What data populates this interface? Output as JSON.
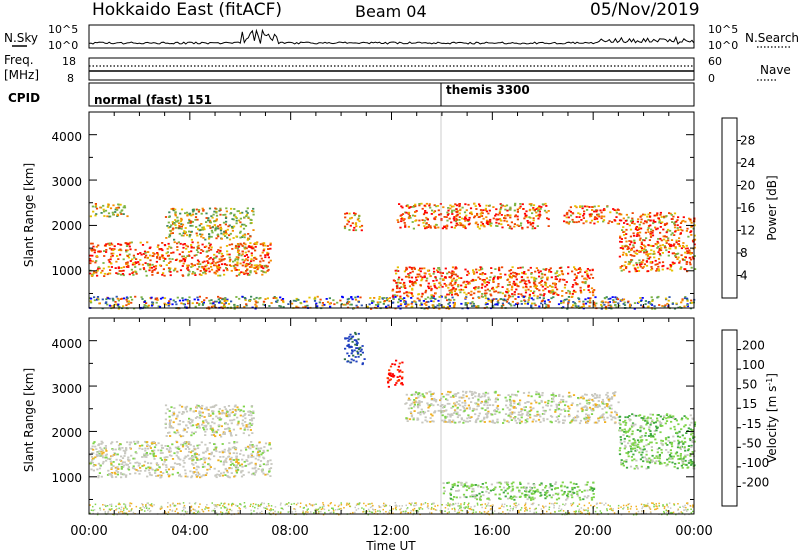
{
  "header": {
    "station": "Hokkaido East (fitACF)",
    "beam": "Beam 04",
    "date": "05/Nov/2019"
  },
  "noise_panel": {
    "left_label": "N.Sky",
    "right_label": "N.Search",
    "left_ticks": [
      "10^5",
      "10^0"
    ],
    "right_ticks": [
      "10^5",
      "10^0"
    ]
  },
  "freq_panel": {
    "left_label_1": "Freq.",
    "left_label_2": "[MHz]",
    "right_label": "Nave",
    "left_ticks": [
      "18",
      "8"
    ],
    "right_ticks": [
      "60",
      "0"
    ]
  },
  "cpid_panel": {
    "label": "CPID",
    "programs": [
      {
        "name": "normal (fast) 151",
        "start_hour": 0
      },
      {
        "name": "themis 3300",
        "start_hour": 14
      }
    ]
  },
  "x_axis": {
    "label": "Time UT",
    "ticks": [
      "00:00",
      "04:00",
      "08:00",
      "12:00",
      "16:00",
      "20:00",
      "00:00"
    ]
  },
  "power_panel": {
    "ylabel": "Slant Range [km]",
    "yticks": [
      "1000",
      "2000",
      "3000",
      "4000"
    ],
    "colorbar_label": "Power [dB]",
    "colorbar_ticks": [
      "4",
      "8",
      "12",
      "16",
      "20",
      "24",
      "28"
    ],
    "colors": [
      "#0000ff",
      "#2c55b0",
      "#3e8a5a",
      "#7cb342",
      "#e6c000",
      "#f58a00",
      "#ee4400",
      "#ff0000"
    ]
  },
  "velocity_panel": {
    "ylabel": "Slant Range [km]",
    "yticks": [
      "1000",
      "2000",
      "3000",
      "4000"
    ],
    "colorbar_label": "Velocity [m s",
    "colorbar_label_sup": "-1",
    "colorbar_label_end": "]",
    "colorbar_ticks": [
      "200",
      "100",
      "50",
      "15",
      "-15",
      "-50",
      "-100",
      "-200"
    ],
    "colors": [
      "#1f3fbf",
      "#2e6e46",
      "#3faa3f",
      "#7fd44a",
      "#c8c8c0",
      "#f0b020",
      "#f58a00",
      "#ff4000",
      "#ff0000"
    ]
  },
  "chart_data": {
    "type": "heatmap",
    "x_range_hours": [
      0,
      24
    ],
    "y_range_km": [
      180,
      4500
    ],
    "power_regions": [
      {
        "t": [
          0,
          7.2
        ],
        "r": [
          900,
          1650
        ],
        "level": "high"
      },
      {
        "t": [
          0,
          1.5
        ],
        "r": [
          2200,
          2500
        ],
        "level": "medium"
      },
      {
        "t": [
          3,
          6.5
        ],
        "r": [
          1700,
          2400
        ],
        "level": "medium"
      },
      {
        "t": [
          10.1,
          10.8
        ],
        "r": [
          1900,
          2300
        ],
        "level": "high"
      },
      {
        "t": [
          12.2,
          18.2
        ],
        "r": [
          1950,
          2500
        ],
        "level": "high"
      },
      {
        "t": [
          18.8,
          21
        ],
        "r": [
          2050,
          2450
        ],
        "level": "high"
      },
      {
        "t": [
          21,
          24
        ],
        "r": [
          1000,
          2300
        ],
        "level": "high"
      },
      {
        "t": [
          12,
          20
        ],
        "r": [
          450,
          1100
        ],
        "level": "high"
      },
      {
        "t": [
          0,
          24
        ],
        "r": [
          180,
          450
        ],
        "level": "low"
      }
    ],
    "velocity_regions": [
      {
        "t": [
          0,
          7.2
        ],
        "r": [
          1000,
          1800
        ],
        "range": "-15 to 15"
      },
      {
        "t": [
          3,
          6.5
        ],
        "r": [
          1900,
          2600
        ],
        "range": "-15 to 15"
      },
      {
        "t": [
          12.5,
          21
        ],
        "r": [
          2200,
          2900
        ],
        "range": "-15 to 15"
      },
      {
        "t": [
          21,
          24
        ],
        "r": [
          1200,
          2400
        ],
        "range": "15 to 50"
      },
      {
        "t": [
          14,
          20
        ],
        "r": [
          500,
          900
        ],
        "range": "15 to 50"
      },
      {
        "t": [
          10.1,
          10.9
        ],
        "r": [
          3500,
          4200
        ],
        "range": "100 to 200"
      },
      {
        "t": [
          11.8,
          12.4
        ],
        "r": [
          3000,
          3600
        ],
        "range": "-100 to -200"
      }
    ]
  }
}
